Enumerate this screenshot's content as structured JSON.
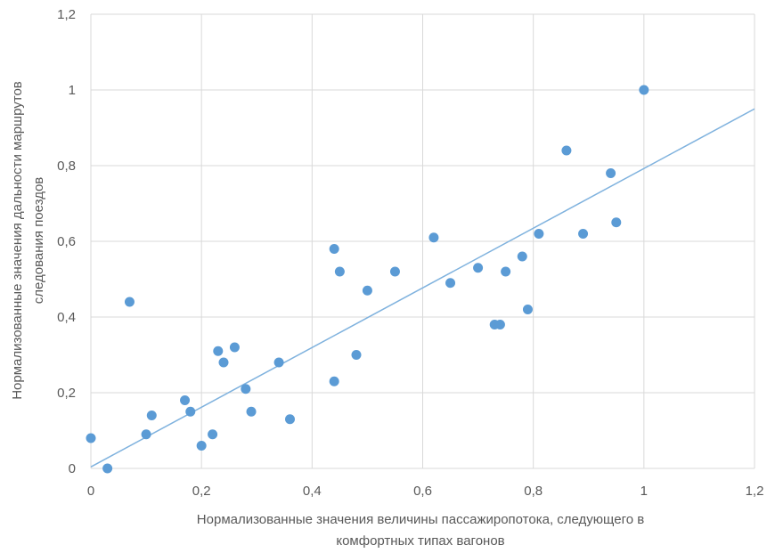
{
  "chart_data": {
    "type": "scatter",
    "title": "",
    "xlabel": [
      "Нормализованные значения величины пассажиропотока, следующего в",
      "комфортных типах вагонов"
    ],
    "ylabel": [
      "Нормализованные значения дальности маршрутов",
      "следования поездов"
    ],
    "xlim": [
      0,
      1.2
    ],
    "ylim": [
      0,
      1.2
    ],
    "xticks": [
      0,
      0.2,
      0.4,
      0.6,
      0.8,
      1,
      1.2
    ],
    "yticks": [
      0,
      0.2,
      0.4,
      0.6,
      0.8,
      1,
      1.2
    ],
    "xtick_labels": [
      "0",
      "0,2",
      "0,4",
      "0,6",
      "0,8",
      "1",
      "1,2"
    ],
    "ytick_labels": [
      "0",
      "0,2",
      "0,4",
      "0,6",
      "0,8",
      "1",
      "1,2"
    ],
    "grid": true,
    "point_color": "#5b9bd5",
    "trendline": {
      "type": "linear",
      "x": [
        0,
        1.2
      ],
      "y": [
        0.004,
        0.95
      ],
      "color": "#7fb2de"
    },
    "points": [
      {
        "x": 0.0,
        "y": 0.08
      },
      {
        "x": 0.03,
        "y": 0.0
      },
      {
        "x": 0.07,
        "y": 0.44
      },
      {
        "x": 0.1,
        "y": 0.09
      },
      {
        "x": 0.11,
        "y": 0.14
      },
      {
        "x": 0.17,
        "y": 0.18
      },
      {
        "x": 0.18,
        "y": 0.15
      },
      {
        "x": 0.2,
        "y": 0.06
      },
      {
        "x": 0.22,
        "y": 0.09
      },
      {
        "x": 0.23,
        "y": 0.31
      },
      {
        "x": 0.24,
        "y": 0.28
      },
      {
        "x": 0.26,
        "y": 0.32
      },
      {
        "x": 0.28,
        "y": 0.21
      },
      {
        "x": 0.29,
        "y": 0.15
      },
      {
        "x": 0.34,
        "y": 0.28
      },
      {
        "x": 0.36,
        "y": 0.13
      },
      {
        "x": 0.44,
        "y": 0.58
      },
      {
        "x": 0.44,
        "y": 0.23
      },
      {
        "x": 0.45,
        "y": 0.52
      },
      {
        "x": 0.48,
        "y": 0.3
      },
      {
        "x": 0.5,
        "y": 0.47
      },
      {
        "x": 0.55,
        "y": 0.52
      },
      {
        "x": 0.62,
        "y": 0.61
      },
      {
        "x": 0.65,
        "y": 0.49
      },
      {
        "x": 0.7,
        "y": 0.53
      },
      {
        "x": 0.73,
        "y": 0.38
      },
      {
        "x": 0.74,
        "y": 0.38
      },
      {
        "x": 0.75,
        "y": 0.52
      },
      {
        "x": 0.78,
        "y": 0.56
      },
      {
        "x": 0.79,
        "y": 0.42
      },
      {
        "x": 0.81,
        "y": 0.62
      },
      {
        "x": 0.86,
        "y": 0.84
      },
      {
        "x": 0.89,
        "y": 0.62
      },
      {
        "x": 0.94,
        "y": 0.78
      },
      {
        "x": 0.95,
        "y": 0.65
      },
      {
        "x": 1.0,
        "y": 1.0
      }
    ]
  }
}
